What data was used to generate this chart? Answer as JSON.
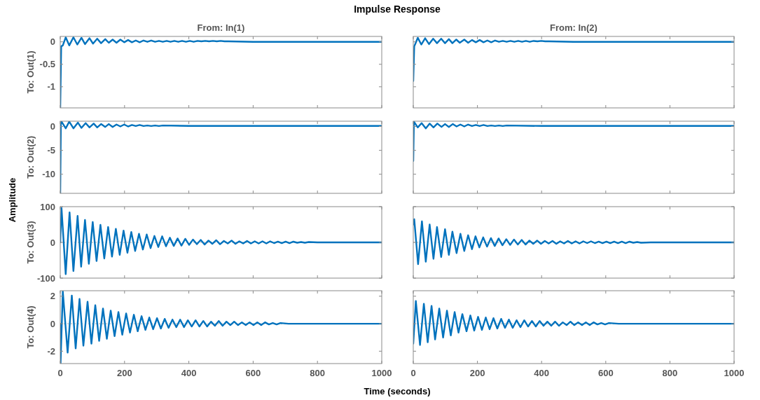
{
  "chart_data": [
    {
      "type": "line",
      "title": "From: In(1)",
      "ylabel": "To: Out(1)",
      "annotations": [
        "Impulse Response"
      ],
      "color": "#0072bd",
      "xlim": [
        0,
        1000
      ],
      "xticks": [
        0,
        200,
        400,
        600,
        800,
        1000
      ],
      "ylim": [
        -1.47,
        0.12
      ],
      "yticks": [
        -1,
        -0.5,
        0
      ],
      "tick_labels": "y",
      "x": [
        0,
        3,
        8,
        17,
        28,
        41,
        53,
        66,
        77,
        91,
        102,
        115,
        127,
        140,
        151,
        163,
        175,
        187,
        199,
        211,
        223,
        235,
        247,
        259,
        271,
        283,
        295,
        307,
        319,
        331,
        343,
        355,
        367,
        379,
        391,
        403,
        415,
        427,
        439,
        451,
        463,
        475,
        487,
        499,
        511,
        523,
        600,
        1000
      ],
      "values": [
        -1.47,
        -0.1,
        -0.08,
        0.1,
        -0.08,
        0.1,
        -0.06,
        0.09,
        -0.05,
        0.08,
        -0.04,
        0.07,
        -0.03,
        0.06,
        -0.02,
        0.05,
        -0.02,
        0.05,
        -0.01,
        0.04,
        -0.01,
        0.03,
        -0.01,
        0.03,
        0,
        0.03,
        0,
        0.02,
        0,
        0.02,
        0,
        0.02,
        0,
        0.02,
        0,
        0.02,
        0,
        0.02,
        0.01,
        0.02,
        0.01,
        0.02,
        0.01,
        0.02,
        0.01,
        0.01,
        0,
        0
      ]
    },
    {
      "type": "line",
      "title": "From: In(2)",
      "color": "#0072bd",
      "xlim": [
        0,
        1000
      ],
      "xticks": [
        0,
        200,
        400,
        600,
        800,
        1000
      ],
      "ylim": [
        -1.47,
        0.12
      ],
      "yticks": [
        -1,
        -0.5,
        0
      ],
      "tick_labels": false,
      "x": [
        0,
        3,
        6,
        14,
        25,
        37,
        49,
        62,
        74,
        87,
        99,
        111,
        122,
        134,
        145,
        159,
        171,
        183,
        195,
        207,
        219,
        231,
        243,
        255,
        267,
        279,
        291,
        303,
        315,
        327,
        339,
        351,
        363,
        375,
        387,
        399,
        411,
        423,
        500,
        1000
      ],
      "values": [
        -0.87,
        -0.1,
        -0.05,
        0.09,
        -0.06,
        0.08,
        -0.05,
        0.07,
        -0.03,
        0.07,
        -0.03,
        0.06,
        -0.03,
        0.05,
        -0.02,
        0.05,
        -0.02,
        0.04,
        -0.01,
        0.04,
        -0.01,
        0.03,
        -0.01,
        0.03,
        0,
        0.02,
        0,
        0.02,
        0,
        0.02,
        0,
        0.02,
        0,
        0.02,
        0.01,
        0.02,
        0.01,
        0.01,
        0,
        0
      ]
    },
    {
      "type": "line",
      "ylabel": "To: Out(2)",
      "color": "#0072bd",
      "xlim": [
        0,
        1000
      ],
      "xticks": [
        0,
        200,
        400,
        600,
        800,
        1000
      ],
      "ylim": [
        -14,
        1.1
      ],
      "yticks": [
        -10,
        -5,
        0
      ],
      "tick_labels": "y",
      "x": [
        0,
        2,
        4,
        17,
        28,
        41,
        55,
        66,
        79,
        91,
        104,
        115,
        127,
        140,
        151,
        163,
        175,
        187,
        199,
        211,
        223,
        235,
        247,
        259,
        271,
        283,
        295,
        307,
        319,
        400,
        1000
      ],
      "values": [
        -14,
        0.5,
        1,
        -0.4,
        1,
        -0.4,
        0.8,
        -0.3,
        0.7,
        -0.2,
        0.6,
        -0.2,
        0.5,
        -0.1,
        0.5,
        -0.1,
        0.4,
        0,
        0.4,
        0,
        0.3,
        0.1,
        0.3,
        0.1,
        0.2,
        0.1,
        0.2,
        0.1,
        0.2,
        0.1,
        0.1
      ]
    },
    {
      "type": "line",
      "color": "#0072bd",
      "xlim": [
        0,
        1000
      ],
      "xticks": [
        0,
        200,
        400,
        600,
        800,
        1000
      ],
      "ylim": [
        -14,
        1.1
      ],
      "yticks": [
        -10,
        -5,
        0
      ],
      "tick_labels": false,
      "x": [
        0,
        2,
        14,
        26,
        39,
        51,
        63,
        75,
        88,
        99,
        111,
        123,
        135,
        147,
        159,
        171,
        183,
        195,
        207,
        219,
        231,
        243,
        255,
        267,
        279,
        291,
        400,
        1000
      ],
      "values": [
        -7.2,
        1,
        -0.2,
        0.7,
        -0.4,
        0.6,
        -0.2,
        0.6,
        -0.1,
        0.5,
        -0.1,
        0.5,
        0,
        0.4,
        0,
        0.4,
        0.1,
        0.3,
        0.1,
        0.3,
        0.1,
        0.2,
        0.1,
        0.2,
        0.1,
        0.2,
        0.1,
        0.1
      ]
    },
    {
      "type": "line",
      "ylabel": "To: Out(3)",
      "annotations": [
        "Amplitude"
      ],
      "color": "#0072bd",
      "xlim": [
        0,
        1000
      ],
      "xticks": [
        0,
        200,
        400,
        600,
        800,
        1000
      ],
      "ylim": [
        -100,
        100
      ],
      "yticks": [
        -100,
        0,
        100
      ],
      "tick_labels": "y",
      "ref_lines": [
        {
          "axis": "y",
          "value": 0,
          "color": "#aaaaaa",
          "line_style": "dotted"
        }
      ],
      "x": [
        0,
        4,
        17,
        29,
        41,
        54,
        65,
        77,
        89,
        101,
        113,
        125,
        137,
        149,
        161,
        173,
        185,
        197,
        209,
        221,
        233,
        245,
        257,
        269,
        281,
        293,
        305,
        317,
        329,
        341,
        353,
        365,
        377,
        389,
        401,
        413,
        425,
        437,
        449,
        461,
        473,
        485,
        497,
        509,
        521,
        533,
        545,
        557,
        569,
        581,
        593,
        605,
        617,
        629,
        641,
        653,
        665,
        677,
        689,
        701,
        713,
        725,
        737,
        749,
        761,
        773,
        800,
        1000
      ],
      "values": [
        0,
        96,
        -89,
        84,
        -80,
        74,
        -68,
        63,
        -60,
        57,
        -52,
        49,
        -45,
        43,
        -40,
        38,
        -35,
        33,
        -29,
        29,
        -24,
        24,
        -20,
        22,
        -16,
        18,
        -13,
        17,
        -11,
        13,
        -10,
        11,
        -9,
        10,
        -7,
        8,
        -5,
        7,
        -6,
        5,
        -4,
        6,
        -5,
        4,
        -3,
        5,
        -4,
        3,
        -3,
        4,
        -3,
        3,
        -3,
        3,
        -3,
        3,
        -2,
        2,
        -2,
        2,
        -2,
        2,
        -1,
        1,
        -1,
        1,
        0,
        0
      ]
    },
    {
      "type": "line",
      "color": "#0072bd",
      "xlim": [
        0,
        1000
      ],
      "xticks": [
        0,
        200,
        400,
        600,
        800,
        1000
      ],
      "ylim": [
        -100,
        100
      ],
      "yticks": [
        -100,
        0,
        100
      ],
      "tick_labels": false,
      "ref_lines": [
        {
          "axis": "y",
          "value": 0,
          "color": "#aaaaaa",
          "line_style": "dotted"
        }
      ],
      "x": [
        0,
        3,
        15,
        27,
        39,
        51,
        63,
        74,
        87,
        99,
        111,
        122,
        135,
        147,
        159,
        171,
        183,
        194,
        206,
        218,
        230,
        242,
        254,
        266,
        278,
        290,
        302,
        314,
        326,
        338,
        350,
        362,
        374,
        386,
        398,
        410,
        422,
        434,
        446,
        458,
        470,
        482,
        494,
        506,
        518,
        530,
        542,
        554,
        566,
        578,
        590,
        602,
        614,
        626,
        638,
        650,
        662,
        674,
        686,
        698,
        710,
        740,
        1000
      ],
      "values": [
        50,
        65,
        -61,
        59,
        -54,
        50,
        -46,
        43,
        -41,
        37,
        -35,
        30,
        -30,
        24,
        -24,
        20,
        -19,
        17,
        -14,
        14,
        -12,
        12,
        -10,
        11,
        -8,
        9,
        -7,
        8,
        -6,
        7,
        -6,
        5,
        -4,
        5,
        -4,
        4,
        -3,
        4,
        -4,
        3,
        -3,
        4,
        -3,
        3,
        -3,
        3,
        -2,
        3,
        -2,
        2,
        -2,
        2,
        -2,
        2,
        -2,
        2,
        -2,
        2,
        -1,
        1,
        -1,
        0,
        0
      ]
    },
    {
      "type": "line",
      "ylabel": "To: Out(4)",
      "xlabel": "Time (seconds)",
      "color": "#0072bd",
      "xlim": [
        0,
        1000
      ],
      "xticks": [
        0,
        200,
        400,
        600,
        800,
        1000
      ],
      "ylim": [
        -2.9,
        2.4
      ],
      "yticks": [
        -2,
        0,
        2
      ],
      "ref_lines": [
        {
          "axis": "y",
          "value": 0,
          "color": "#aaaaaa",
          "line_style": "dotted"
        }
      ],
      "x": [
        0,
        1,
        8,
        23,
        36,
        48,
        60,
        72,
        85,
        97,
        109,
        121,
        133,
        145,
        157,
        169,
        181,
        193,
        205,
        217,
        229,
        241,
        253,
        265,
        277,
        289,
        301,
        313,
        325,
        337,
        349,
        361,
        373,
        385,
        397,
        409,
        421,
        433,
        445,
        457,
        469,
        481,
        493,
        505,
        517,
        529,
        541,
        553,
        565,
        577,
        589,
        601,
        613,
        625,
        637,
        649,
        661,
        673,
        685,
        710,
        1000
      ],
      "values": [
        0,
        -2.9,
        2.35,
        -2.1,
        2.05,
        -1.8,
        1.8,
        -1.6,
        1.6,
        -1.45,
        1.35,
        -1.25,
        1.1,
        -1.1,
        0.95,
        -0.9,
        0.85,
        -0.8,
        0.75,
        -0.65,
        0.65,
        -0.55,
        0.55,
        -0.45,
        0.45,
        -0.4,
        0.4,
        -0.35,
        0.35,
        -0.3,
        0.3,
        -0.25,
        0.3,
        -0.25,
        0.25,
        -0.2,
        0.25,
        -0.2,
        0.2,
        -0.2,
        0.15,
        -0.15,
        0.2,
        -0.15,
        0.15,
        -0.1,
        0.15,
        -0.1,
        0.1,
        -0.1,
        0.1,
        -0.1,
        0.1,
        -0.1,
        0.1,
        -0.05,
        0.05,
        -0.05,
        0.05,
        0,
        0
      ]
    },
    {
      "type": "line",
      "color": "#0072bd",
      "xlim": [
        0,
        1000
      ],
      "xticks": [
        0,
        200,
        400,
        600,
        800,
        1000
      ],
      "ylim": [
        -2.9,
        2.4
      ],
      "yticks": [
        -2,
        0,
        2
      ],
      "tick_labels": "x",
      "ref_lines": [
        {
          "axis": "y",
          "value": 0,
          "color": "#aaaaaa",
          "line_style": "dotted"
        }
      ],
      "x": [
        0,
        8,
        21,
        33,
        45,
        57,
        68,
        81,
        93,
        105,
        117,
        129,
        141,
        153,
        166,
        178,
        190,
        202,
        214,
        226,
        238,
        250,
        262,
        274,
        286,
        298,
        310,
        322,
        334,
        346,
        358,
        370,
        382,
        394,
        406,
        418,
        430,
        442,
        454,
        466,
        478,
        490,
        502,
        514,
        526,
        538,
        550,
        562,
        574,
        586,
        598,
        610,
        640,
        1000
      ],
      "values": [
        -1.45,
        1.65,
        -1.55,
        1.45,
        -1.35,
        1.3,
        -1.15,
        1.1,
        -1,
        0.95,
        -0.85,
        0.85,
        -0.65,
        0.7,
        -0.55,
        0.6,
        -0.5,
        0.5,
        -0.45,
        0.45,
        -0.4,
        0.4,
        -0.35,
        0.35,
        -0.3,
        0.3,
        -0.3,
        0.25,
        -0.25,
        0.25,
        -0.2,
        0.2,
        -0.2,
        0.2,
        -0.15,
        0.15,
        -0.15,
        0.15,
        -0.15,
        0.1,
        -0.1,
        0.15,
        -0.1,
        0.1,
        -0.1,
        0.1,
        -0.1,
        0.1,
        -0.05,
        0.05,
        -0.05,
        0.05,
        0,
        0
      ]
    }
  ]
}
